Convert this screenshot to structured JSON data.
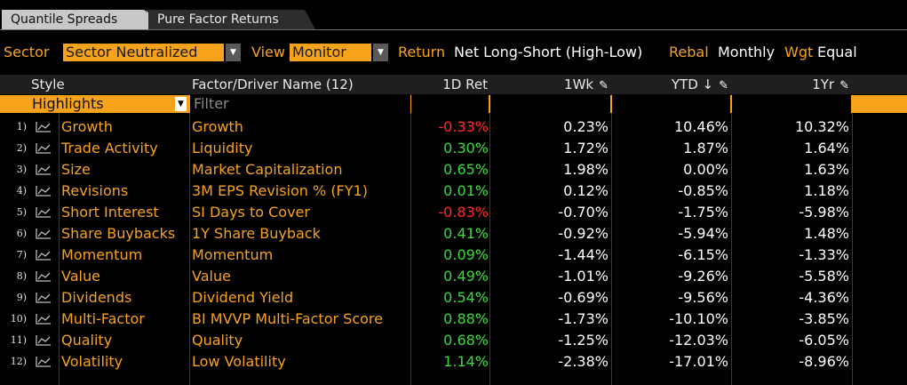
{
  "tabs": [
    {
      "label": "Quantile Spreads",
      "active": true
    },
    {
      "label": "Pure Factor Returns",
      "active": false
    }
  ],
  "controls": {
    "sector_label": "Sector",
    "sector_value": "Sector Neutralized",
    "view_label": "View",
    "view_value": "Monitor",
    "return_label": "Return",
    "return_value": "Net Long-Short (High-Low)",
    "rebal_label": "Rebal",
    "rebal_value": "Monthly",
    "wgt_label": "Wgt",
    "wgt_value": "Equal"
  },
  "columns": {
    "style": "Style",
    "factor": "Factor/Driver Name (12)",
    "d1": "1D Ret",
    "wk": "1Wk",
    "ytd": "YTD ↓",
    "yr": "1Yr"
  },
  "filters": {
    "highlights": "Highlights",
    "filter_placeholder": "Filter"
  },
  "colors": {
    "accent_orange": "#f7a21b",
    "positive_green": "#3bd93b",
    "negative_red": "#ff2b2b",
    "header_bg": "#1f1f1f"
  },
  "rows": [
    {
      "num": "1)",
      "style": "Growth",
      "factor": "Growth",
      "d1": "-0.33%",
      "wk": "0.23%",
      "ytd": "10.46%",
      "yr": "10.32%"
    },
    {
      "num": "2)",
      "style": "Trade Activity",
      "factor": "Liquidity",
      "d1": "0.30%",
      "wk": "1.72%",
      "ytd": "1.87%",
      "yr": "1.64%"
    },
    {
      "num": "3)",
      "style": "Size",
      "factor": "Market Capitalization",
      "d1": "0.65%",
      "wk": "1.98%",
      "ytd": "0.00%",
      "yr": "1.63%"
    },
    {
      "num": "4)",
      "style": "Revisions",
      "factor": "3M EPS Revision % (FY1)",
      "d1": "0.01%",
      "wk": "0.12%",
      "ytd": "-0.85%",
      "yr": "1.18%"
    },
    {
      "num": "5)",
      "style": "Short Interest",
      "factor": "SI Days to Cover",
      "d1": "-0.83%",
      "wk": "-0.70%",
      "ytd": "-1.75%",
      "yr": "-5.98%"
    },
    {
      "num": "6)",
      "style": "Share Buybacks",
      "factor": "1Y Share Buyback",
      "d1": "0.41%",
      "wk": "-0.92%",
      "ytd": "-5.94%",
      "yr": "1.48%"
    },
    {
      "num": "7)",
      "style": "Momentum",
      "factor": "Momentum",
      "d1": "0.09%",
      "wk": "-1.44%",
      "ytd": "-6.15%",
      "yr": "-1.33%"
    },
    {
      "num": "8)",
      "style": "Value",
      "factor": "Value",
      "d1": "0.49%",
      "wk": "-1.01%",
      "ytd": "-9.26%",
      "yr": "-5.58%"
    },
    {
      "num": "9)",
      "style": "Dividends",
      "factor": "Dividend Yield",
      "d1": "0.54%",
      "wk": "-0.69%",
      "ytd": "-9.56%",
      "yr": "-4.36%"
    },
    {
      "num": "10)",
      "style": "Multi-Factor",
      "factor": "BI MVVP Multi-Factor Score",
      "d1": "0.88%",
      "wk": "-1.73%",
      "ytd": "-10.10%",
      "yr": "-3.85%"
    },
    {
      "num": "11)",
      "style": "Quality",
      "factor": "Quality",
      "d1": "0.68%",
      "wk": "-1.25%",
      "ytd": "-12.03%",
      "yr": "-6.05%"
    },
    {
      "num": "12)",
      "style": "Volatility",
      "factor": "Low Volatility",
      "d1": "1.14%",
      "wk": "-2.38%",
      "ytd": "-17.01%",
      "yr": "-8.96%"
    }
  ]
}
